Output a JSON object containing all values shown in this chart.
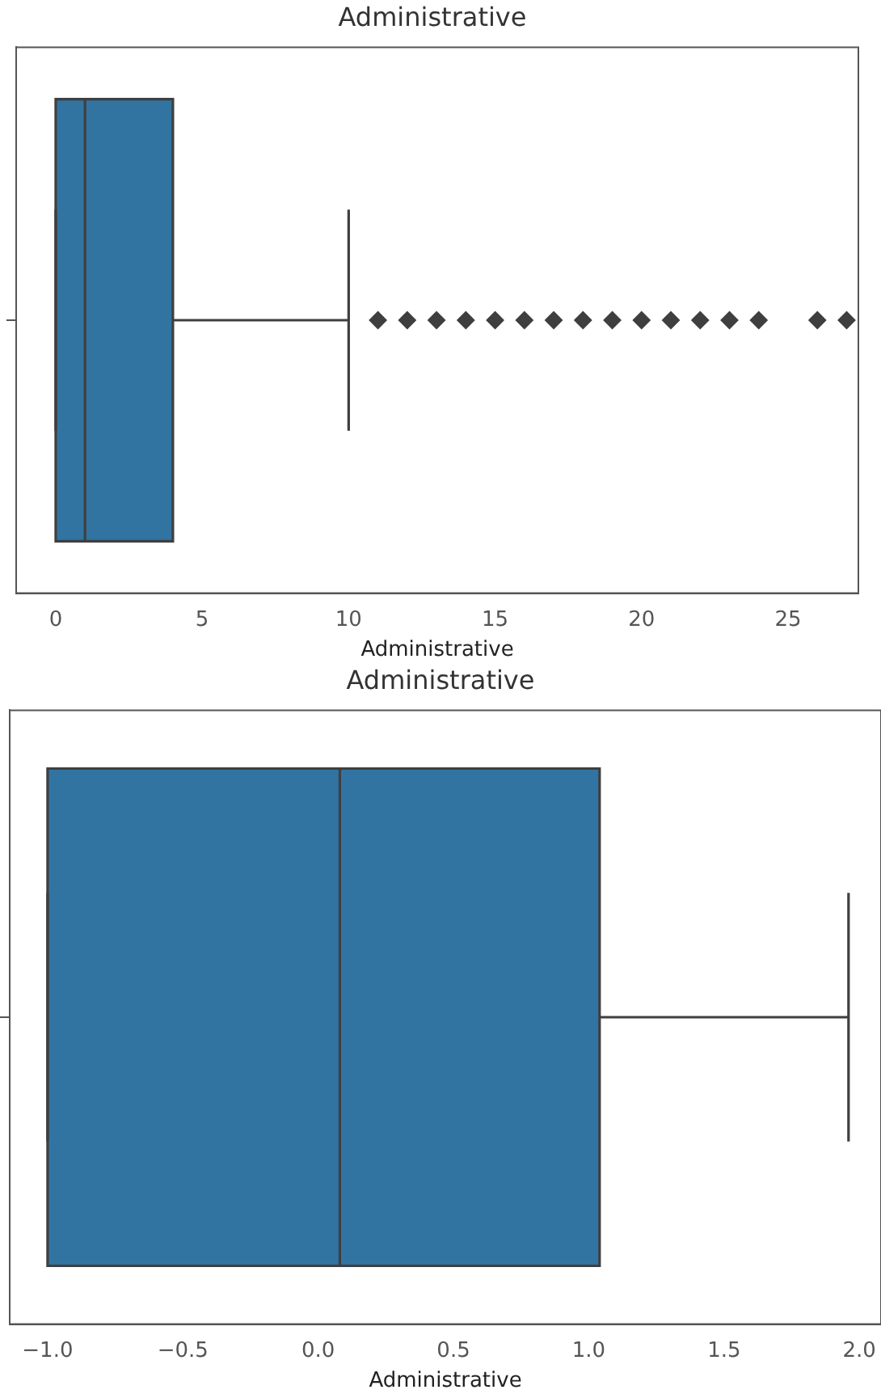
{
  "chart_data": [
    {
      "type": "box",
      "orientation": "horizontal",
      "title": "Administrative",
      "xlabel": "Administrative",
      "categories": [
        null
      ],
      "color": "#3274a1",
      "marker": "diamond",
      "tick_labels": "x",
      "xlim": [
        -1.35,
        27.4
      ],
      "xticks": [
        {
          "value": 0,
          "label": "0"
        },
        {
          "value": 5,
          "label": "5"
        },
        {
          "value": 10,
          "label": "10"
        },
        {
          "value": 15,
          "label": "15"
        },
        {
          "value": 20,
          "label": "20"
        },
        {
          "value": 25,
          "label": "25"
        }
      ],
      "boxes": [
        {
          "low": 0,
          "q1": 0,
          "median": 1,
          "q3": 4,
          "high": 10,
          "outliers": [
            11,
            12,
            13,
            14,
            15,
            16,
            17,
            18,
            19,
            20,
            21,
            22,
            23,
            24,
            26,
            27
          ]
        }
      ]
    },
    {
      "type": "box",
      "orientation": "horizontal",
      "title": "Administrative",
      "xlabel": "Administrative",
      "categories": [
        null
      ],
      "color": "#3274a1",
      "tick_labels": "x",
      "xlim": [
        -1.14,
        2.08
      ],
      "xticks": [
        {
          "value": -1.0,
          "label": "−1.0"
        },
        {
          "value": -0.5,
          "label": "−0.5"
        },
        {
          "value": 0.0,
          "label": "0.0"
        },
        {
          "value": 0.5,
          "label": "0.5"
        },
        {
          "value": 1.0,
          "label": "1.0"
        },
        {
          "value": 1.5,
          "label": "1.5"
        },
        {
          "value": 2.0,
          "label": "2.0"
        }
      ],
      "boxes": [
        {
          "low": -1.0,
          "q1": -1.0,
          "median": 0.08,
          "q3": 1.04,
          "high": 1.96
        }
      ]
    }
  ]
}
